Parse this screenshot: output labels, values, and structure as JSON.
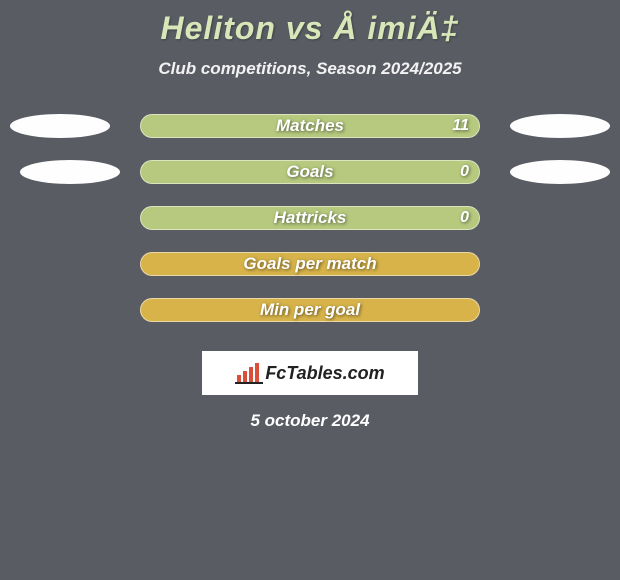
{
  "title": "Heliton vs Å imiÄ‡",
  "subtitle": "Club competitions, Season 2024/2025",
  "date": "5 october 2024",
  "logo_text": "FcTables.com",
  "colors": {
    "background": "#5a5c64",
    "title": "#d8e6b8",
    "ellipse": "#fefefe",
    "pill_fill_odd": "#b6c97e",
    "pill_fill_even": "#d7b34a",
    "logo_bg": "#ffffff",
    "logo_text": "#222222",
    "logo_bars": "#d94f3a"
  },
  "rows": [
    {
      "label": "Matches",
      "value": "11",
      "show_value": true,
      "left_ellipse": true,
      "right_ellipse": true,
      "fill": "#b6c97e",
      "ellipse_indent": false
    },
    {
      "label": "Goals",
      "value": "0",
      "show_value": true,
      "left_ellipse": true,
      "right_ellipse": true,
      "fill": "#b6c97e",
      "ellipse_indent": true
    },
    {
      "label": "Hattricks",
      "value": "0",
      "show_value": true,
      "left_ellipse": false,
      "right_ellipse": false,
      "fill": "#b6c97e",
      "ellipse_indent": false
    },
    {
      "label": "Goals per match",
      "value": "",
      "show_value": false,
      "left_ellipse": false,
      "right_ellipse": false,
      "fill": "#d7b34a",
      "ellipse_indent": false
    },
    {
      "label": "Min per goal",
      "value": "",
      "show_value": false,
      "left_ellipse": false,
      "right_ellipse": false,
      "fill": "#d7b34a",
      "ellipse_indent": false
    }
  ]
}
